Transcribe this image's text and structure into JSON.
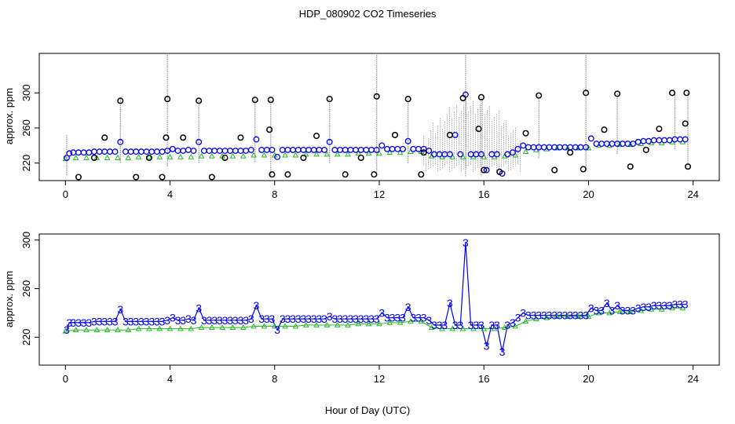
{
  "figure": {
    "title": "HDP_080902  CO2 Timeseries",
    "xlabel": "Hour of Day (UTC)"
  },
  "colors": {
    "axis": "#000000",
    "raw_range": "#9a9a9a",
    "raw_points": "#000000",
    "blue": "#0000ff",
    "green": "#22bb22",
    "cyan": "#33dddd"
  },
  "chart_data": [
    {
      "type": "scatter",
      "panel": "top",
      "title": "",
      "xlabel": "",
      "ylabel": "approx. ppm",
      "xlim": [
        -1,
        25
      ],
      "ylim": [
        200,
        345
      ],
      "xticks": [
        0,
        4,
        8,
        12,
        16,
        20,
        24
      ],
      "yticks": [
        220,
        260,
        300
      ],
      "grid": false,
      "series": [
        {
          "marker": "circle-blue",
          "x": [
            0.05,
            0.15,
            0.3,
            0.5,
            0.7,
            0.9,
            1.1,
            1.3,
            1.5,
            1.7,
            1.9,
            2.1,
            2.3,
            2.5,
            2.7,
            2.9,
            3.1,
            3.3,
            3.5,
            3.7,
            3.9,
            4.1,
            4.3,
            4.5,
            4.7,
            4.9,
            5.1,
            5.3,
            5.5,
            5.7,
            5.9,
            6.1,
            6.3,
            6.5,
            6.7,
            6.9,
            7.1,
            7.3,
            7.5,
            7.7,
            7.9,
            8.1,
            8.3,
            8.5,
            8.7,
            8.9,
            9.1,
            9.3,
            9.5,
            9.7,
            9.9,
            10.1,
            10.3,
            10.5,
            10.7,
            10.9,
            11.1,
            11.3,
            11.5,
            11.7,
            11.9,
            12.1,
            12.3,
            12.5,
            12.7,
            12.9,
            13.1,
            13.3,
            13.5,
            13.7,
            13.9,
            14.1,
            14.3,
            14.5,
            14.7,
            14.9,
            15.1,
            15.3,
            15.5,
            15.7,
            15.9,
            16.1,
            16.3,
            16.5,
            16.7,
            16.9,
            17.1,
            17.3,
            17.5,
            17.7,
            17.9,
            18.1,
            18.3,
            18.5,
            18.7,
            18.9,
            19.1,
            19.3,
            19.5,
            19.7,
            19.9,
            20.1,
            20.3,
            20.5,
            20.7,
            20.9,
            21.1,
            21.3,
            21.5,
            21.7,
            21.9,
            22.1,
            22.3,
            22.5,
            22.7,
            22.9,
            23.1,
            23.3,
            23.5,
            23.7
          ],
          "y": [
            226,
            231,
            232,
            232,
            232,
            232,
            233,
            233,
            233,
            233,
            233,
            244,
            233,
            233,
            233,
            233,
            233,
            233,
            233,
            233,
            234,
            236,
            234,
            234,
            235,
            234,
            244,
            234,
            234,
            234,
            234,
            234,
            234,
            234,
            234,
            234,
            235,
            247,
            235,
            235,
            235,
            227,
            235,
            235,
            235,
            235,
            235,
            235,
            235,
            235,
            235,
            244,
            235,
            235,
            235,
            235,
            235,
            235,
            235,
            235,
            235,
            240,
            236,
            236,
            236,
            236,
            245,
            236,
            236,
            236,
            234,
            230,
            230,
            230,
            230,
            252,
            230,
            298,
            230,
            230,
            230,
            212,
            230,
            230,
            208,
            230,
            232,
            236,
            240,
            238,
            238,
            238,
            238,
            238,
            238,
            238,
            238,
            238,
            238,
            238,
            238,
            248,
            242,
            242,
            242,
            242,
            242,
            242,
            242,
            242,
            244,
            245,
            245,
            246,
            246,
            246,
            246,
            247,
            247,
            247
          ]
        },
        {
          "marker": "circle-black",
          "x": [
            0.5,
            1.1,
            1.5,
            2.1,
            2.7,
            3.2,
            3.7,
            3.85,
            3.9,
            4.5,
            5.1,
            5.6,
            6.1,
            6.7,
            7.25,
            7.8,
            7.85,
            7.9,
            8.5,
            9.1,
            9.6,
            10.1,
            10.7,
            11.3,
            11.8,
            11.9,
            12.6,
            13.1,
            13.6,
            13.7,
            14.7,
            15.2,
            15.8,
            15.9,
            16.0,
            16.6,
            17.6,
            18.1,
            18.7,
            19.3,
            19.8,
            19.9,
            20.6,
            21.1,
            21.6,
            22.2,
            22.7,
            23.2,
            23.7,
            23.75,
            23.8
          ],
          "y": [
            204,
            226,
            249,
            291,
            204,
            226,
            204,
            249,
            293,
            249,
            291,
            204,
            226,
            249,
            292,
            258,
            292,
            207,
            207,
            226,
            251,
            293,
            207,
            226,
            207,
            296,
            252,
            293,
            207,
            232,
            252,
            294,
            259,
            295,
            212,
            210,
            254,
            297,
            212,
            232,
            213,
            300,
            258,
            299,
            216,
            235,
            259,
            300,
            265,
            300,
            216
          ]
        },
        {
          "marker": "triangle-green",
          "x": [
            0.0,
            0.4,
            0.8,
            1.2,
            1.6,
            2.0,
            2.4,
            2.8,
            3.2,
            3.6,
            4.0,
            4.4,
            4.8,
            5.2,
            5.6,
            6.0,
            6.4,
            6.8,
            7.2,
            7.6,
            8.0,
            8.4,
            8.8,
            9.2,
            9.6,
            10.0,
            10.4,
            10.8,
            11.2,
            11.6,
            12.0,
            12.4,
            12.8,
            13.2,
            13.6,
            14.0,
            14.4,
            14.8,
            15.2,
            15.6,
            16.0,
            16.4,
            16.8,
            17.2,
            17.6,
            18.0,
            18.4,
            18.8,
            19.2,
            19.6,
            20.0,
            20.4,
            20.8,
            21.2,
            21.6,
            22.0,
            22.4,
            22.8,
            23.2,
            23.6
          ],
          "y": [
            225,
            226,
            226,
            226,
            226,
            226,
            226,
            227,
            227,
            227,
            227,
            227,
            227,
            228,
            228,
            228,
            228,
            228,
            229,
            229,
            229,
            229,
            229,
            230,
            230,
            230,
            230,
            230,
            231,
            231,
            231,
            232,
            232,
            233,
            233,
            228,
            227,
            227,
            227,
            227,
            227,
            227,
            228,
            229,
            233,
            235,
            236,
            237,
            237,
            237,
            237,
            240,
            240,
            241,
            241,
            242,
            243,
            243,
            244,
            244
          ]
        }
      ],
      "raw_spikes": [
        {
          "x": 0.05,
          "lo": 205,
          "hi": 252
        },
        {
          "x": 2.1,
          "lo": 220,
          "hi": 293
        },
        {
          "x": 3.9,
          "lo": 215,
          "hi": 345
        },
        {
          "x": 5.1,
          "lo": 220,
          "hi": 291
        },
        {
          "x": 7.25,
          "lo": 220,
          "hi": 292
        },
        {
          "x": 7.85,
          "lo": 205,
          "hi": 292
        },
        {
          "x": 10.1,
          "lo": 220,
          "hi": 293
        },
        {
          "x": 11.9,
          "lo": 205,
          "hi": 345
        },
        {
          "x": 13.1,
          "lo": 220,
          "hi": 293
        },
        {
          "x": 15.3,
          "lo": 205,
          "hi": 345
        },
        {
          "x": 15.9,
          "lo": 205,
          "hi": 295
        },
        {
          "x": 18.1,
          "lo": 225,
          "hi": 297
        },
        {
          "x": 19.9,
          "lo": 212,
          "hi": 345
        },
        {
          "x": 21.1,
          "lo": 230,
          "hi": 299
        },
        {
          "x": 23.3,
          "lo": 235,
          "hi": 300
        },
        {
          "x": 23.8,
          "lo": 215,
          "hi": 300
        }
      ],
      "dense_raw_window": [
        13.7,
        17.4
      ]
    },
    {
      "type": "line",
      "panel": "bottom",
      "title": "",
      "xlabel": "Hour of Day (UTC)",
      "ylabel": "approx. ppm",
      "xlim": [
        -1,
        25
      ],
      "ylim": [
        197,
        305
      ],
      "xticks": [
        0,
        4,
        8,
        12,
        16,
        20,
        24
      ],
      "yticks": [
        220,
        260,
        300
      ],
      "grid": false,
      "marker_label": "3",
      "series": [
        {
          "marker": "digit-blue",
          "x": [
            0.05,
            0.15,
            0.3,
            0.5,
            0.7,
            0.9,
            1.1,
            1.3,
            1.5,
            1.7,
            1.9,
            2.1,
            2.3,
            2.5,
            2.7,
            2.9,
            3.1,
            3.3,
            3.5,
            3.7,
            3.9,
            4.1,
            4.3,
            4.5,
            4.7,
            4.9,
            5.1,
            5.3,
            5.5,
            5.7,
            5.9,
            6.1,
            6.3,
            6.5,
            6.7,
            6.9,
            7.1,
            7.3,
            7.5,
            7.7,
            7.9,
            8.1,
            8.3,
            8.5,
            8.7,
            8.9,
            9.1,
            9.3,
            9.5,
            9.7,
            9.9,
            10.1,
            10.3,
            10.5,
            10.7,
            10.9,
            11.1,
            11.3,
            11.5,
            11.7,
            11.9,
            12.1,
            12.3,
            12.5,
            12.7,
            12.9,
            13.1,
            13.3,
            13.5,
            13.7,
            13.9,
            14.1,
            14.3,
            14.5,
            14.7,
            14.9,
            15.1,
            15.3,
            15.5,
            15.7,
            15.9,
            16.1,
            16.3,
            16.5,
            16.7,
            16.9,
            17.1,
            17.3,
            17.5,
            17.7,
            17.9,
            18.1,
            18.3,
            18.5,
            18.7,
            18.9,
            19.1,
            19.3,
            19.5,
            19.7,
            19.9,
            20.1,
            20.3,
            20.5,
            20.7,
            20.9,
            21.1,
            21.3,
            21.5,
            21.7,
            21.9,
            22.1,
            22.3,
            22.5,
            22.7,
            22.9,
            23.1,
            23.3,
            23.5,
            23.7
          ],
          "y": [
            226,
            232,
            232,
            232,
            232,
            232,
            233,
            233,
            233,
            233,
            233,
            243,
            233,
            233,
            233,
            233,
            233,
            233,
            233,
            233,
            234,
            236,
            234,
            234,
            235,
            234,
            244,
            234,
            234,
            234,
            234,
            234,
            234,
            234,
            234,
            234,
            235,
            246,
            235,
            235,
            235,
            226,
            235,
            235,
            235,
            235,
            235,
            235,
            235,
            235,
            235,
            237,
            235,
            235,
            235,
            235,
            235,
            235,
            235,
            235,
            235,
            240,
            236,
            236,
            236,
            236,
            245,
            236,
            236,
            236,
            234,
            230,
            230,
            230,
            248,
            230,
            230,
            298,
            230,
            230,
            230,
            213,
            230,
            230,
            208,
            230,
            232,
            236,
            240,
            238,
            238,
            238,
            238,
            238,
            238,
            238,
            238,
            238,
            238,
            238,
            238,
            244,
            242,
            242,
            248,
            242,
            246,
            242,
            242,
            242,
            244,
            245,
            245,
            246,
            246,
            246,
            246,
            247,
            247,
            247
          ]
        },
        {
          "marker": "triangle-green",
          "x": [
            0.0,
            0.4,
            0.8,
            1.2,
            1.6,
            2.0,
            2.4,
            2.8,
            3.2,
            3.6,
            4.0,
            4.4,
            4.8,
            5.2,
            5.6,
            6.0,
            6.4,
            6.8,
            7.2,
            7.6,
            8.0,
            8.4,
            8.8,
            9.2,
            9.6,
            10.0,
            10.4,
            10.8,
            11.2,
            11.6,
            12.0,
            12.4,
            12.8,
            13.2,
            13.6,
            14.0,
            14.4,
            14.8,
            15.2,
            15.6,
            16.0,
            16.4,
            16.8,
            17.2,
            17.6,
            18.0,
            18.4,
            18.8,
            19.2,
            19.6,
            20.0,
            20.4,
            20.8,
            21.2,
            21.6,
            22.0,
            22.4,
            22.8,
            23.2,
            23.6
          ],
          "y": [
            225,
            226,
            226,
            226,
            226,
            226,
            226,
            227,
            227,
            227,
            227,
            227,
            227,
            228,
            228,
            228,
            228,
            228,
            229,
            229,
            229,
            229,
            229,
            230,
            230,
            230,
            230,
            230,
            231,
            231,
            231,
            232,
            232,
            233,
            233,
            228,
            227,
            227,
            227,
            227,
            227,
            227,
            228,
            229,
            233,
            235,
            236,
            237,
            237,
            237,
            237,
            240,
            240,
            241,
            241,
            242,
            243,
            243,
            244,
            244
          ]
        }
      ]
    }
  ]
}
